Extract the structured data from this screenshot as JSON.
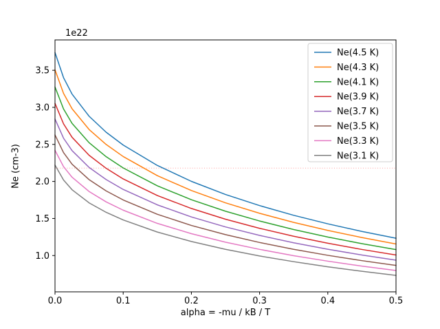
{
  "figure": {
    "background": "#ffffff",
    "text_color": "#000000",
    "spine_color": "#000000"
  },
  "axes": {
    "xlabel": "alpha = -mu / kB / T",
    "ylabel": "Ne (cm-3)",
    "offset_text": "1e22",
    "x_ticks": {
      "values": [
        0.0,
        0.1,
        0.2,
        0.3,
        0.4,
        0.5
      ],
      "labels": [
        "0.0",
        "0.1",
        "0.2",
        "0.3",
        "0.4",
        "0.5"
      ]
    },
    "y_ticks": {
      "values": [
        1.0,
        1.5,
        2.0,
        2.5,
        3.0,
        3.5
      ],
      "labels": [
        "1.0",
        "1.5",
        "2.0",
        "2.5",
        "3.0",
        "3.5"
      ]
    }
  },
  "legend": {
    "location": "upper right",
    "entries": [
      {
        "label": "Ne(4.5 K)",
        "color": "#1f77b4"
      },
      {
        "label": "Ne(4.3 K)",
        "color": "#ff7f0e"
      },
      {
        "label": "Ne(4.1 K)",
        "color": "#2ca02c"
      },
      {
        "label": "Ne(3.9 K)",
        "color": "#d62728"
      },
      {
        "label": "Ne(3.7 K)",
        "color": "#9467bd"
      },
      {
        "label": "Ne(3.5 K)",
        "color": "#8c564b"
      },
      {
        "label": "Ne(3.3 K)",
        "color": "#e377c2"
      },
      {
        "label": "Ne(3.1 K)",
        "color": "#7f7f7f"
      }
    ]
  },
  "chart_data": {
    "type": "line",
    "title": "",
    "xlabel": "alpha = -mu / kB / T",
    "ylabel": "Ne (cm-3)",
    "y_unit_multiplier": "1e22",
    "xlim": [
      0.0,
      0.5
    ],
    "ylim": [
      0.51,
      3.91
    ],
    "grid": false,
    "legend_position": "upper right",
    "x": [
      0.0,
      0.0125,
      0.025,
      0.05,
      0.075,
      0.1,
      0.15,
      0.2,
      0.25,
      0.3,
      0.35,
      0.4,
      0.45,
      0.5
    ],
    "series": [
      {
        "name": "Ne(4.5 K)",
        "color": "#1f77b4",
        "values": [
          3.739,
          3.401,
          3.179,
          2.88,
          2.664,
          2.491,
          2.216,
          2.001,
          1.824,
          1.674,
          1.543,
          1.428,
          1.325,
          1.233
        ]
      },
      {
        "name": "Ne(4.3 K)",
        "color": "#ff7f0e",
        "values": [
          3.507,
          3.189,
          2.981,
          2.701,
          2.499,
          2.336,
          2.078,
          1.877,
          1.711,
          1.57,
          1.447,
          1.339,
          1.243,
          1.156
        ]
      },
      {
        "name": "Ne(4.1 K)",
        "color": "#2ca02c",
        "values": [
          3.275,
          2.979,
          2.784,
          2.523,
          2.334,
          2.182,
          1.941,
          1.753,
          1.598,
          1.466,
          1.351,
          1.25,
          1.16,
          1.08
        ]
      },
      {
        "name": "Ne(3.9 K)",
        "color": "#d62728",
        "values": [
          3.054,
          2.778,
          2.596,
          2.353,
          2.177,
          2.034,
          1.81,
          1.635,
          1.49,
          1.367,
          1.26,
          1.166,
          1.082,
          1.007
        ]
      },
      {
        "name": "Ne(3.7 K)",
        "color": "#9467bd",
        "values": [
          2.842,
          2.584,
          2.416,
          2.189,
          2.025,
          1.892,
          1.684,
          1.521,
          1.386,
          1.272,
          1.172,
          1.085,
          1.007,
          0.937
        ]
      },
      {
        "name": "Ne(3.5 K)",
        "color": "#8c564b",
        "values": [
          2.627,
          2.389,
          2.233,
          2.024,
          1.872,
          1.75,
          1.557,
          1.406,
          1.282,
          1.176,
          1.084,
          1.003,
          0.931,
          0.866
        ]
      },
      {
        "name": "Ne(3.3 K)",
        "color": "#e377c2",
        "values": [
          2.42,
          2.2,
          2.057,
          1.864,
          1.724,
          1.612,
          1.434,
          1.295,
          1.18,
          1.083,
          0.998,
          0.924,
          0.857,
          0.798
        ]
      },
      {
        "name": "Ne(3.1 K)",
        "color": "#7f7f7f",
        "values": [
          2.221,
          2.02,
          1.888,
          1.711,
          1.583,
          1.48,
          1.317,
          1.189,
          1.084,
          0.994,
          0.917,
          0.848,
          0.787,
          0.732
        ]
      }
    ],
    "reference_line": {
      "y": 2.18,
      "color": "#ff5050",
      "linestyle": "dotted",
      "orientation": "horizontal"
    }
  }
}
